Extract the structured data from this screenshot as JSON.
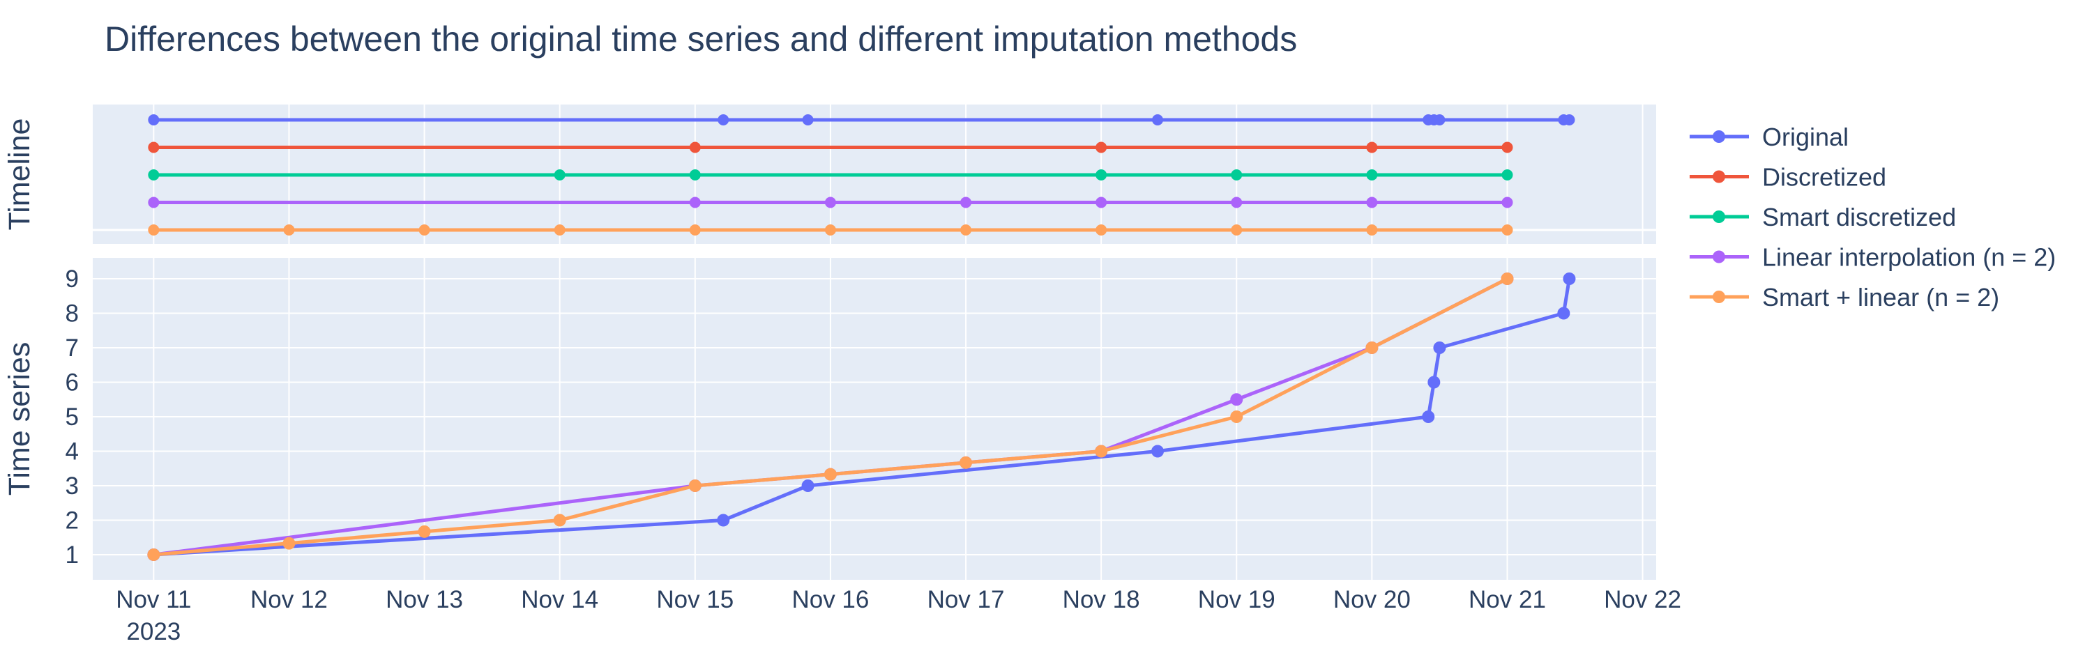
{
  "chart_data": {
    "type": "line",
    "title": "Differences between the original time series and different imputation methods",
    "x_ticks": [
      "Nov 11",
      "Nov 12",
      "Nov 13",
      "Nov 14",
      "Nov 15",
      "Nov 16",
      "Nov 17",
      "Nov 18",
      "Nov 19",
      "Nov 20",
      "Nov 21",
      "Nov 22"
    ],
    "x_tick_year": "2023",
    "x_range_days": [
      10.55,
      22.1
    ],
    "legend_position": "top-right",
    "grid": true,
    "subplots": [
      {
        "name": "timeline",
        "ylabel": "Timeline",
        "description": "Each series drawn at a constant level showing the timestamps of its observations",
        "rows": [
          "Original",
          "Discretized",
          "Smart discretized",
          "Linear interpolation (n = 2)",
          "Smart + linear (n = 2)"
        ]
      },
      {
        "name": "time_series",
        "ylabel": "Time series",
        "ylim": [
          0.2,
          9.4
        ],
        "y_ticks": [
          1,
          2,
          3,
          4,
          5,
          6,
          7,
          8,
          9
        ]
      }
    ],
    "series": [
      {
        "name": "Original",
        "color": "#636efa",
        "x": [
          "2023-11-11 00:00",
          "2023-11-15 05:00",
          "2023-11-15 20:00",
          "2023-11-18 10:00",
          "2023-11-20 10:00",
          "2023-11-20 11:00",
          "2023-11-20 12:00",
          "2023-11-21 10:00",
          "2023-11-21 11:00"
        ],
        "y": [
          1,
          2,
          3,
          4,
          5,
          6,
          7,
          8,
          9
        ]
      },
      {
        "name": "Discretized",
        "color": "#ef553b",
        "x": [
          "2023-11-11",
          "2023-11-15",
          "2023-11-18",
          "2023-11-20",
          "2023-11-21"
        ],
        "y": null
      },
      {
        "name": "Smart discretized",
        "color": "#00cc96",
        "x": [
          "2023-11-11",
          "2023-11-14",
          "2023-11-15",
          "2023-11-18",
          "2023-11-19",
          "2023-11-20",
          "2023-11-21"
        ],
        "y": null
      },
      {
        "name": "Linear interpolation (n = 2)",
        "color": "#ab63fa",
        "x": [
          "2023-11-11",
          "2023-11-15",
          "2023-11-16",
          "2023-11-17",
          "2023-11-18",
          "2023-11-19",
          "2023-11-20",
          "2023-11-21"
        ],
        "y": [
          1,
          3,
          3.33,
          3.67,
          4,
          5.5,
          7,
          9
        ]
      },
      {
        "name": "Smart + linear (n = 2)",
        "color": "#ffa15a",
        "x": [
          "2023-11-11",
          "2023-11-12",
          "2023-11-13",
          "2023-11-14",
          "2023-11-15",
          "2023-11-16",
          "2023-11-17",
          "2023-11-18",
          "2023-11-19",
          "2023-11-20",
          "2023-11-21"
        ],
        "y": [
          1,
          1.33,
          1.67,
          2,
          3,
          3.33,
          3.67,
          4,
          5,
          7,
          9
        ]
      }
    ]
  }
}
